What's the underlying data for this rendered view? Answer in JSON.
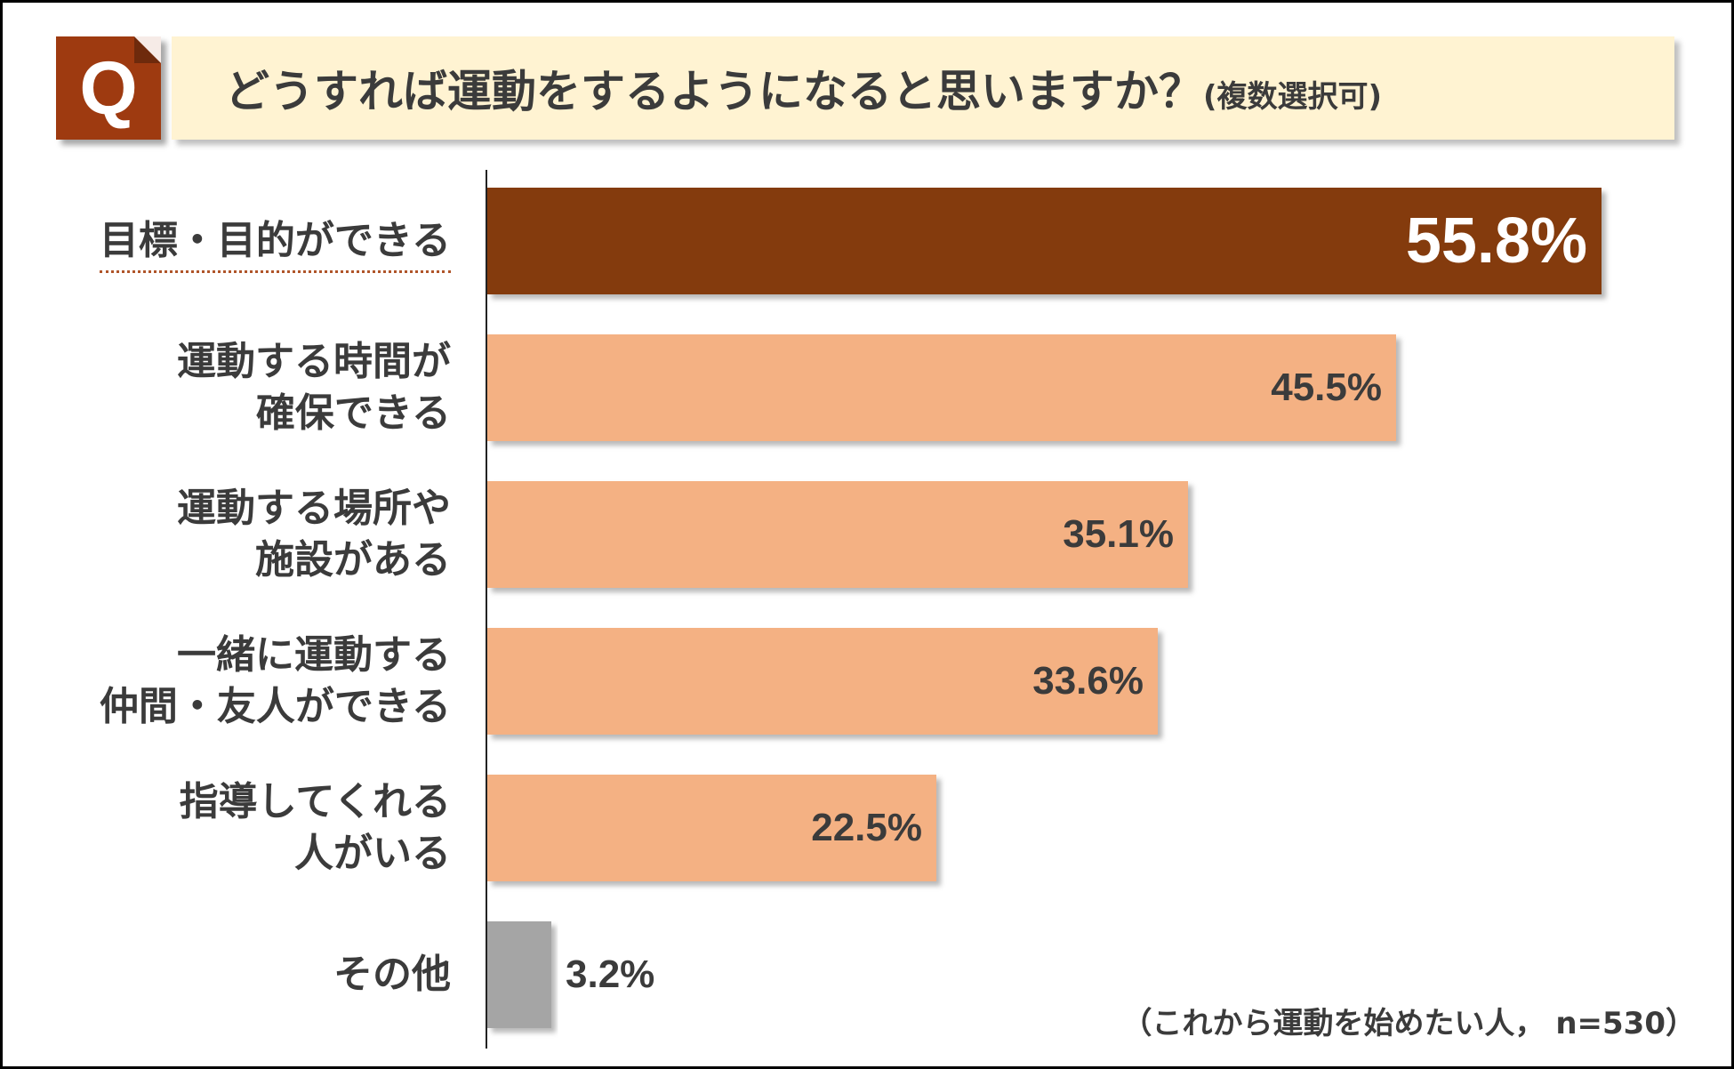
{
  "question": {
    "badge": "Q",
    "text": "どうすれば運動をするようになると思いますか？",
    "note": "(複数選択可)"
  },
  "footnote": "（これから運動を始めたい人， n=530）",
  "colors": {
    "highlight_bar": "#843a0c",
    "normal_bar": "#f4b183",
    "other_bar": "#a5a5a5",
    "badge": "#9e3a10",
    "question_bg": "#fff3d2"
  },
  "chart_data": {
    "type": "bar",
    "orientation": "horizontal",
    "categories": [
      [
        "目標・目的ができる"
      ],
      [
        "運動する時間が",
        "確保できる"
      ],
      [
        "運動する場所や",
        "施設がある"
      ],
      [
        "一緒に運動する",
        "仲間・友人ができる"
      ],
      [
        "指導してくれる",
        "人がいる"
      ],
      [
        "その他"
      ]
    ],
    "values": [
      55.8,
      45.5,
      35.1,
      33.6,
      22.5,
      3.2
    ],
    "value_labels": [
      "55.8%",
      "45.5%",
      "35.1%",
      "33.6%",
      "22.5%",
      "3.2%"
    ],
    "unit": "%",
    "xlim": [
      0,
      60
    ],
    "highlight_index": 0,
    "other_index": 5,
    "grid": false,
    "legend": "none"
  }
}
